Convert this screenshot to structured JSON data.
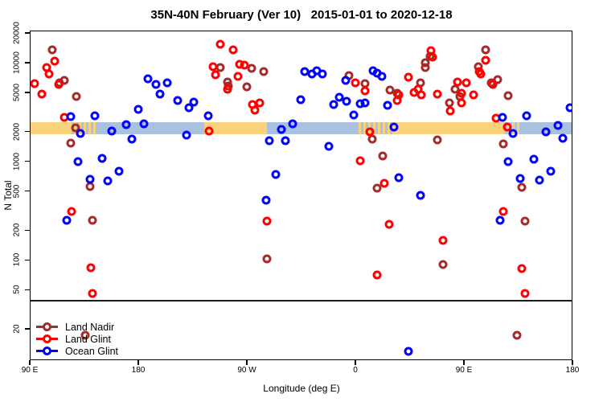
{
  "title": "35N-40N February (Ver 10)   2015-01-01 to 2020-12-18",
  "chart_data": {
    "type": "scatter",
    "title": "35N-40N February (Ver 10)  2015-01-01 to 2020-12-18",
    "xlabel": "Longitude (deg E)",
    "ylabel": "N Total",
    "x_axis": {
      "span_deg": 450,
      "unit": "degrees east of 90E (axis wraps 90E→180→90W→0→90E→180)",
      "ticks": [
        {
          "pos": 0,
          "label": "90 E"
        },
        {
          "pos": 90,
          "label": "180"
        },
        {
          "pos": 180,
          "label": "90 W"
        },
        {
          "pos": 270,
          "label": "0"
        },
        {
          "pos": 360,
          "label": "90 E"
        },
        {
          "pos": 450,
          "label": "180"
        }
      ]
    },
    "y_axis": {
      "scale": "log",
      "range": [
        10,
        21000
      ],
      "ticks": [
        {
          "v": 20000,
          "label": "20000"
        },
        {
          "v": 10000,
          "label": "10000"
        },
        {
          "v": 5000,
          "label": "5000"
        },
        {
          "v": 2000,
          "label": "2000"
        },
        {
          "v": 1000,
          "label": "1000"
        },
        {
          "v": 500,
          "label": "500"
        },
        {
          "v": 200,
          "label": "200"
        },
        {
          "v": 100,
          "label": "100"
        },
        {
          "v": 50,
          "label": "50"
        },
        {
          "v": 20,
          "label": "20"
        }
      ]
    },
    "reference_line": {
      "n": 40
    },
    "band": {
      "n_low": 1910,
      "n_high": 2540,
      "colors": {
        "orange": "#FAD27C",
        "blue": "#A8C2E0"
      },
      "segments": [
        {
          "from": 0,
          "to": 32,
          "color": "orange"
        },
        {
          "from": 32,
          "to": 54,
          "color": "mixed"
        },
        {
          "from": 54,
          "to": 144,
          "color": "blue"
        },
        {
          "from": 144,
          "to": 196,
          "color": "orange"
        },
        {
          "from": 196,
          "to": 272,
          "color": "blue"
        },
        {
          "from": 272,
          "to": 302,
          "color": "mixed"
        },
        {
          "from": 302,
          "to": 391,
          "color": "orange"
        },
        {
          "from": 391,
          "to": 405,
          "color": "mixed"
        },
        {
          "from": 405,
          "to": 450,
          "color": "blue"
        }
      ]
    },
    "legend_position": "bottom-left",
    "series": [
      {
        "name": "Land Nadir",
        "color": "#A52A2A",
        "points": [
          [
            18,
            13700
          ],
          [
            24,
            6370
          ],
          [
            28,
            6730
          ],
          [
            38,
            4620
          ],
          [
            37,
            2220
          ],
          [
            33,
            1560
          ],
          [
            49,
            565
          ],
          [
            51,
            257
          ],
          [
            45,
            17.5
          ],
          [
            157,
            9100
          ],
          [
            183,
            8920
          ],
          [
            193,
            8280
          ],
          [
            163,
            6490
          ],
          [
            164,
            5900
          ],
          [
            179,
            5790
          ],
          [
            196,
            104
          ],
          [
            264,
            7530
          ],
          [
            277,
            6250
          ],
          [
            283,
            1710
          ],
          [
            292,
            1150
          ],
          [
            287,
            545
          ],
          [
            298,
            5370
          ],
          [
            304,
            4990
          ],
          [
            327,
            10200
          ],
          [
            327,
            9100
          ],
          [
            331,
            11800
          ],
          [
            323,
            6370
          ],
          [
            347,
            3980
          ],
          [
            352,
            5470
          ],
          [
            356,
            4620
          ],
          [
            371,
            9270
          ],
          [
            377,
            13700
          ],
          [
            382,
            6370
          ],
          [
            387,
            6860
          ],
          [
            396,
            4710
          ],
          [
            392,
            1540
          ],
          [
            337,
            1680
          ],
          [
            407,
            555
          ],
          [
            410,
            252
          ],
          [
            342,
            91
          ],
          [
            403,
            17.5
          ]
        ]
      },
      {
        "name": "Land Glint",
        "color": "#FF0000",
        "points": [
          [
            3,
            6250
          ],
          [
            20,
            10600
          ],
          [
            13,
            9100
          ],
          [
            15,
            7820
          ],
          [
            9,
            4900
          ],
          [
            23,
            6130
          ],
          [
            28,
            2840
          ],
          [
            34,
            315
          ],
          [
            50,
            85
          ],
          [
            51,
            46.5
          ],
          [
            148,
            2060
          ],
          [
            157,
            15700
          ],
          [
            168,
            13700
          ],
          [
            151,
            9270
          ],
          [
            153,
            7680
          ],
          [
            173,
            9790
          ],
          [
            177,
            9620
          ],
          [
            172,
            7390
          ],
          [
            163,
            5470
          ],
          [
            184,
            3840
          ],
          [
            190,
            3980
          ],
          [
            186,
            3360
          ],
          [
            196,
            252
          ],
          [
            287,
            72
          ],
          [
            269,
            6370
          ],
          [
            277,
            5270
          ],
          [
            281,
            2020
          ],
          [
            273,
            1030
          ],
          [
            293,
            610
          ],
          [
            297,
            234
          ],
          [
            304,
            4210
          ],
          [
            332,
            13500
          ],
          [
            333,
            11600
          ],
          [
            313,
            7260
          ],
          [
            321,
            5470
          ],
          [
            318,
            5060
          ],
          [
            324,
            4800
          ],
          [
            305,
            4800
          ],
          [
            337,
            4900
          ],
          [
            348,
            3300
          ],
          [
            354,
            6490
          ],
          [
            361,
            6370
          ],
          [
            357,
            4990
          ],
          [
            357,
            3980
          ],
          [
            367,
            4800
          ],
          [
            372,
            8280
          ],
          [
            373,
            7820
          ],
          [
            377,
            10700
          ],
          [
            383,
            6130
          ],
          [
            386,
            2790
          ],
          [
            395,
            2270
          ],
          [
            392,
            315
          ],
          [
            342,
            161
          ],
          [
            407,
            83
          ],
          [
            410,
            46.5
          ]
        ]
      },
      {
        "name": "Ocean Glint",
        "color": "#0000FF",
        "points": [
          [
            33,
            2890
          ],
          [
            41,
            1950
          ],
          [
            53,
            2950
          ],
          [
            67,
            2060
          ],
          [
            79,
            2400
          ],
          [
            89,
            3430
          ],
          [
            84,
            1710
          ],
          [
            94,
            2440
          ],
          [
            97,
            7000
          ],
          [
            104,
            6130
          ],
          [
            107,
            4900
          ],
          [
            113,
            6370
          ],
          [
            122,
            4210
          ],
          [
            131,
            3560
          ],
          [
            135,
            4040
          ],
          [
            147,
            2950
          ],
          [
            129,
            1880
          ],
          [
            39,
            1010
          ],
          [
            59,
            1080
          ],
          [
            73,
            807
          ],
          [
            49,
            668
          ],
          [
            64,
            645
          ],
          [
            30,
            257
          ],
          [
            198,
            1650
          ],
          [
            211,
            1650
          ],
          [
            208,
            2140
          ],
          [
            217,
            2440
          ],
          [
            203,
            748
          ],
          [
            195,
            410
          ],
          [
            247,
            1450
          ],
          [
            227,
            8280
          ],
          [
            233,
            7820
          ],
          [
            237,
            8440
          ],
          [
            242,
            7820
          ],
          [
            224,
            4290
          ],
          [
            251,
            3840
          ],
          [
            256,
            4540
          ],
          [
            262,
            4170
          ],
          [
            261,
            6730
          ],
          [
            273,
            3910
          ],
          [
            277,
            3980
          ],
          [
            268,
            3010
          ],
          [
            284,
            8430
          ],
          [
            287,
            7980
          ],
          [
            291,
            7390
          ],
          [
            296,
            3760
          ],
          [
            301,
            2270
          ],
          [
            305,
            695
          ],
          [
            323,
            459
          ],
          [
            313,
            12
          ],
          [
            391,
            2840
          ],
          [
            411,
            2950
          ],
          [
            447,
            3560
          ],
          [
            437,
            2340
          ],
          [
            427,
            2020
          ],
          [
            441,
            1740
          ],
          [
            400,
            1950
          ],
          [
            396,
            1010
          ],
          [
            417,
            1070
          ],
          [
            431,
            807
          ],
          [
            406,
            678
          ],
          [
            422,
            652
          ],
          [
            389,
            257
          ]
        ]
      }
    ]
  }
}
